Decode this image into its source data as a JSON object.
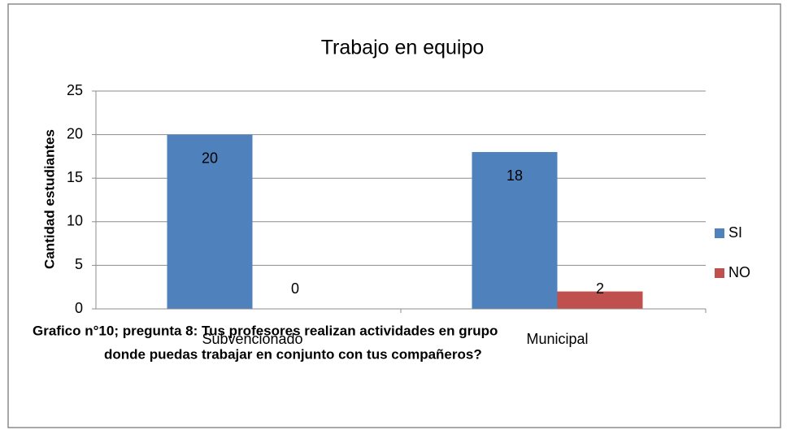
{
  "chart_data": {
    "type": "bar",
    "title": "Trabajo en equipo",
    "y_label": "Cantidad estudiantes",
    "categories": [
      "Subvencionado",
      "Municipal"
    ],
    "series": [
      {
        "name": "SI",
        "color": "#4f81bd",
        "values": [
          20,
          18
        ]
      },
      {
        "name": "NO",
        "color": "#c0504d",
        "values": [
          0,
          2
        ]
      }
    ],
    "ylim": [
      0,
      25
    ],
    "yticks": [
      0,
      5,
      10,
      15,
      20,
      25
    ],
    "grid": true,
    "legend": "right",
    "caption": [
      "Grafico n°10; pregunta 8: Tus profesores realizan actividades en grupo",
      "donde puedas trabajar en conjunto con tus compañeros?"
    ]
  }
}
